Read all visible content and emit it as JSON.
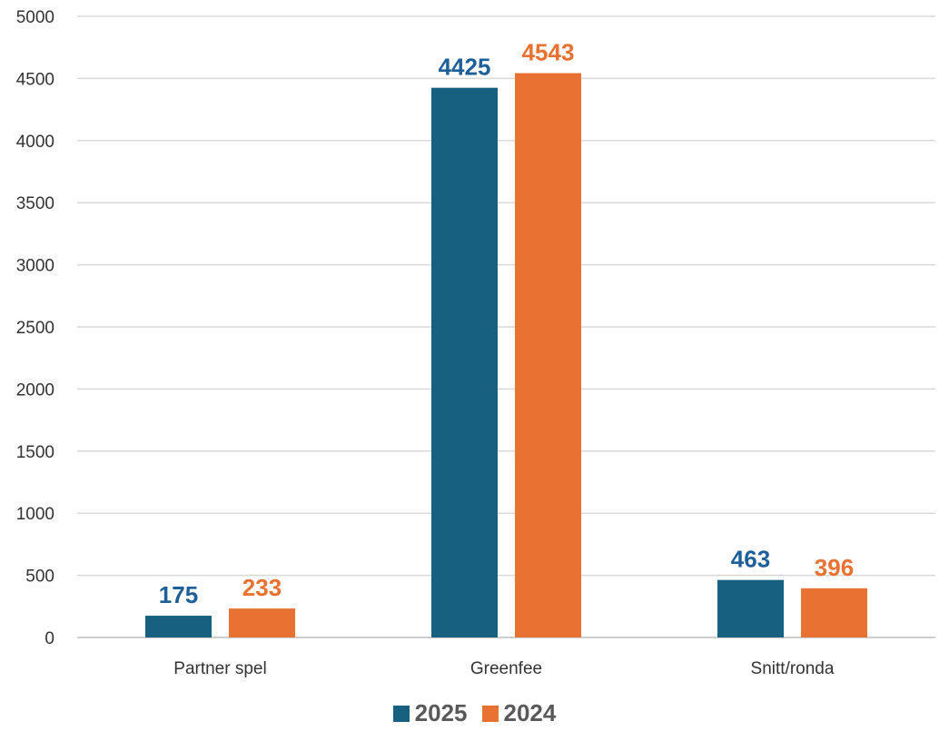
{
  "chart_data": {
    "type": "bar",
    "title": "",
    "xlabel": "",
    "ylabel": "",
    "categories": [
      "Partner spel",
      "Greenfee",
      "Snitt/ronda"
    ],
    "series": [
      {
        "name": "2025",
        "color": "#17607f",
        "label_color": "#1f5f99",
        "values": [
          175,
          4425,
          463
        ]
      },
      {
        "name": "2024",
        "color": "#e97132",
        "label_color": "#e97132",
        "values": [
          233,
          4543,
          396
        ]
      }
    ],
    "ylim": [
      0,
      5000
    ],
    "yticks": [
      0,
      500,
      1000,
      1500,
      2000,
      2500,
      3000,
      3500,
      4000,
      4500,
      5000
    ],
    "grid": true,
    "legend_position": "bottom",
    "data_labels": true
  }
}
